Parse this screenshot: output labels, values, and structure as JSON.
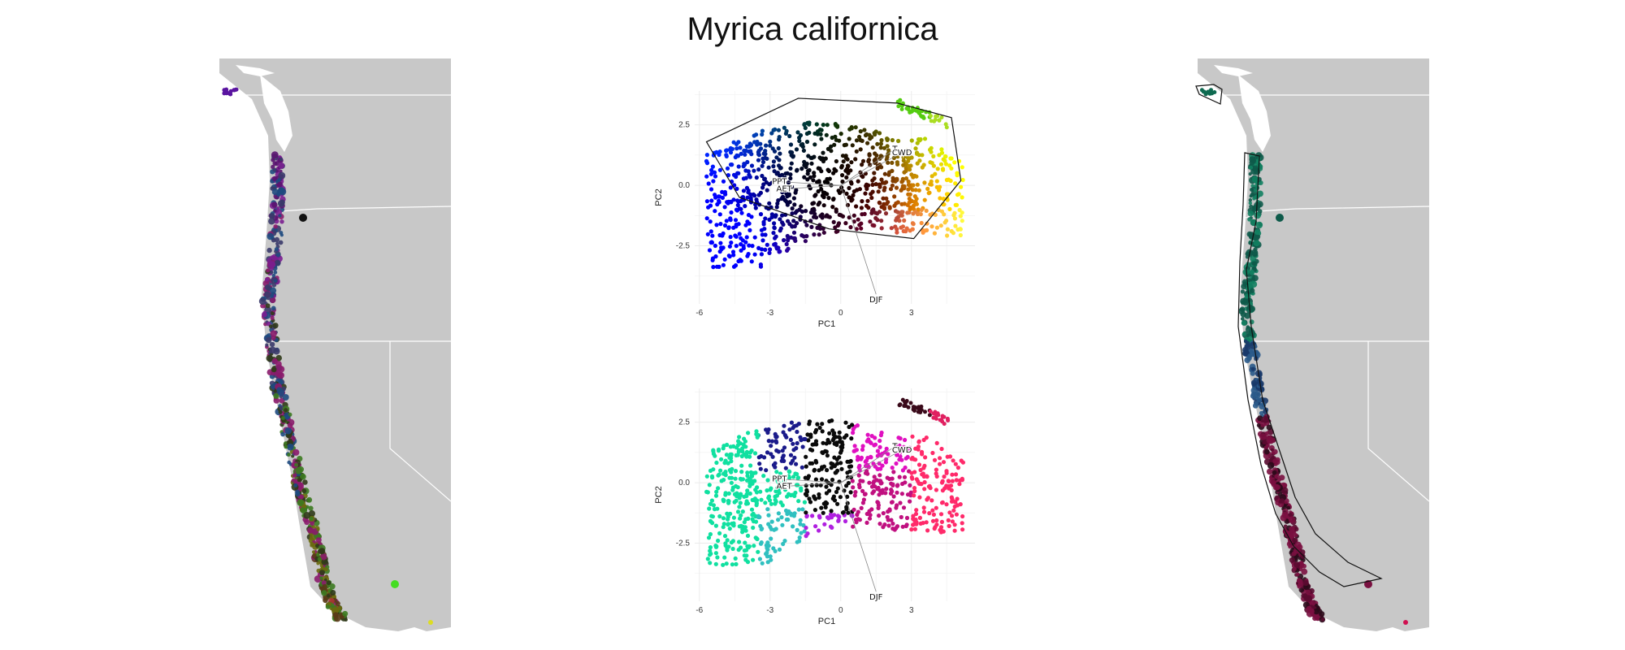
{
  "title": "Myrica californica",
  "colors": {
    "land": "#c8c8c8",
    "water": "#ffffff",
    "border": "#ffffff",
    "hull": "#111111",
    "vector": "#888888",
    "grid": "#ebebeb"
  },
  "maps": [
    {
      "id": "range-map-rgb",
      "palette": "rgb-pca",
      "hull": false
    },
    {
      "id": "range-map-cluster",
      "palette": "cluster",
      "hull": true
    }
  ],
  "chart_data": [
    {
      "type": "scatter",
      "panel": "pca-top",
      "xlabel": "PC1",
      "ylabel": "PC2",
      "xticks": [
        -6,
        -3,
        0,
        3
      ],
      "yticks": [
        -2.5,
        0.0,
        2.5
      ],
      "xlim": [
        -6.2,
        5.7
      ],
      "ylim": [
        -4.9,
        3.9
      ],
      "grid": true,
      "vectors": [
        {
          "label": "PPT",
          "x": -2.6,
          "y": 0.15
        },
        {
          "label": "AET",
          "x": -2.4,
          "y": -0.15
        },
        {
          "label": "T",
          "x": 2.3,
          "y": 1.5
        },
        {
          "label": "CWD",
          "x": 2.6,
          "y": 1.35
        },
        {
          "label": "DJF",
          "x": 1.5,
          "y": -4.5
        }
      ]
    },
    {
      "type": "scatter",
      "panel": "pca-bottom",
      "xlabel": "PC1",
      "ylabel": "PC2",
      "xticks": [
        -6,
        -3,
        0,
        3
      ],
      "yticks": [
        -2.5,
        0.0,
        2.5
      ],
      "xlim": [
        -6.2,
        5.7
      ],
      "ylim": [
        -4.9,
        3.9
      ],
      "grid": true,
      "vectors": [
        {
          "label": "PPT",
          "x": -2.6,
          "y": 0.15
        },
        {
          "label": "AET",
          "x": -2.4,
          "y": -0.15
        },
        {
          "label": "T",
          "x": 2.3,
          "y": 1.5
        },
        {
          "label": "CWD",
          "x": 2.6,
          "y": 1.35
        },
        {
          "label": "DJF",
          "x": 1.5,
          "y": -4.5
        }
      ]
    }
  ]
}
